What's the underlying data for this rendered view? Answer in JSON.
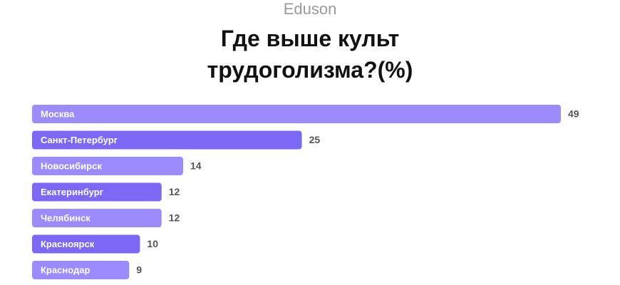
{
  "brand": "Eduson",
  "chart_data": {
    "type": "bar",
    "orientation": "horizontal",
    "title": "Где выше культ трудоголизма?(%)",
    "categories": [
      "Москва",
      "Санкт-Петербург",
      "Новосибирск",
      "Екатеринбург",
      "Челябинск",
      "Красноярск",
      "Краснодар"
    ],
    "values": [
      49,
      25,
      14,
      12,
      12,
      10,
      9
    ],
    "colors": [
      "#9a8bff",
      "#7b68f6",
      "#9a8bff",
      "#7b68f6",
      "#9a8bff",
      "#7b68f6",
      "#9a8bff"
    ]
  }
}
